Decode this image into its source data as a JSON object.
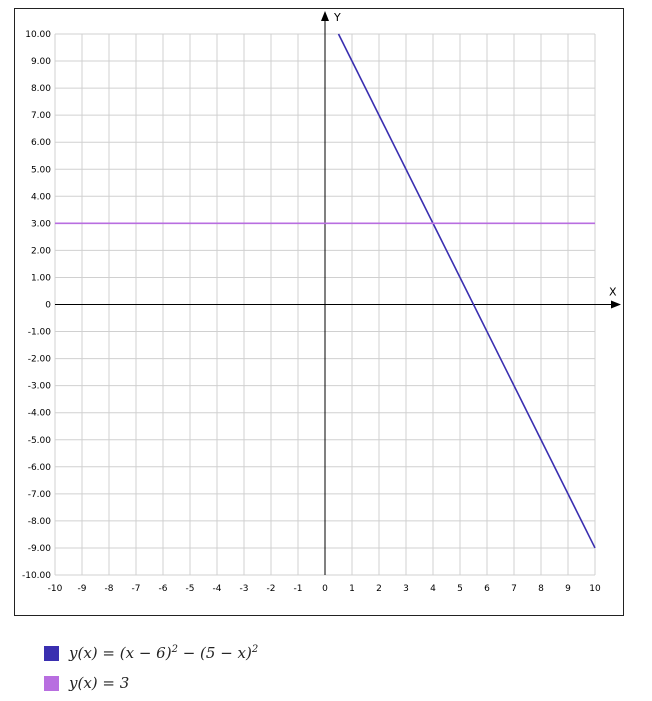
{
  "chart_data": {
    "type": "line",
    "xlabel": "X",
    "ylabel": "Y",
    "xlim": [
      -10,
      10
    ],
    "ylim": [
      -10,
      10
    ],
    "grid": true,
    "x_ticks": [
      "-10",
      "-9",
      "-8",
      "-7",
      "-6",
      "-5",
      "-4",
      "-3",
      "-2",
      "-1",
      "0",
      "1",
      "2",
      "3",
      "4",
      "5",
      "6",
      "7",
      "8",
      "9",
      "10"
    ],
    "y_ticks": [
      "10.00",
      "9.00",
      "8.00",
      "7.00",
      "6.00",
      "5.00",
      "4.00",
      "3.00",
      "2.00",
      "1.00",
      "0",
      "-1.00",
      "-2.00",
      "-3.00",
      "-4.00",
      "-5.00",
      "-6.00",
      "-7.00",
      "-8.00",
      "-9.00",
      "-10.00"
    ],
    "series": [
      {
        "name": "y(x) = (x − 6)^2 − (5 − x)^2",
        "color": "#3a2fb0",
        "x": [
          0.5,
          10
        ],
        "y": [
          10,
          -9
        ]
      },
      {
        "name": "y(x) = 3",
        "color": "#b86ee0",
        "x": [
          -10,
          10
        ],
        "y": [
          3,
          3
        ]
      }
    ]
  },
  "legend": [
    {
      "color": "#3a2fb0",
      "html": "y(x) = (x − 6)<sup>2</sup> − (5 − x)<sup>2</sup>"
    },
    {
      "color": "#b86ee0",
      "html": "y(x) = 3"
    }
  ]
}
